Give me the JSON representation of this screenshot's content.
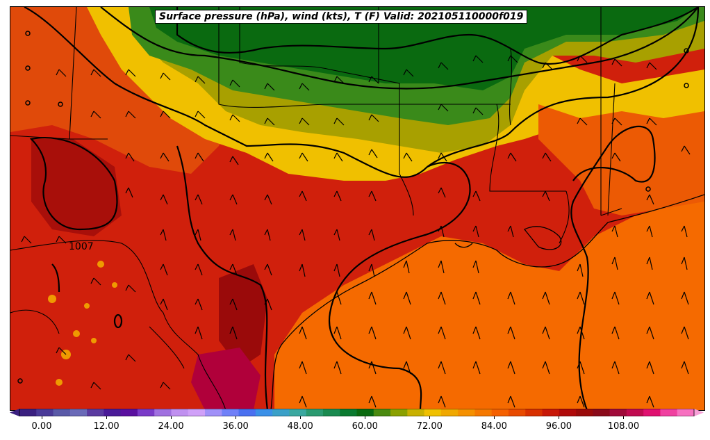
{
  "title": "Surface pressure (hPa), wind (kts), T (F) Valid: 202105110000f019",
  "contour_label": "1007",
  "colorbar": {
    "ticks": [
      "0.00",
      "12.00",
      "24.00",
      "36.00",
      "48.00",
      "60.00",
      "72.00",
      "84.00",
      "96.00",
      "108.00"
    ],
    "extend": "both"
  },
  "colors": {
    "hot_red": "#c8140a",
    "dark_red": "#9a0a0a",
    "orange_red": "#e04a0a",
    "gulf_orange": "#f56a00",
    "yellow": "#f0c000",
    "olive": "#a8a800",
    "green": "#3a8a1a",
    "dark_green": "#0a6a10",
    "magenta": "#b0003a"
  }
}
